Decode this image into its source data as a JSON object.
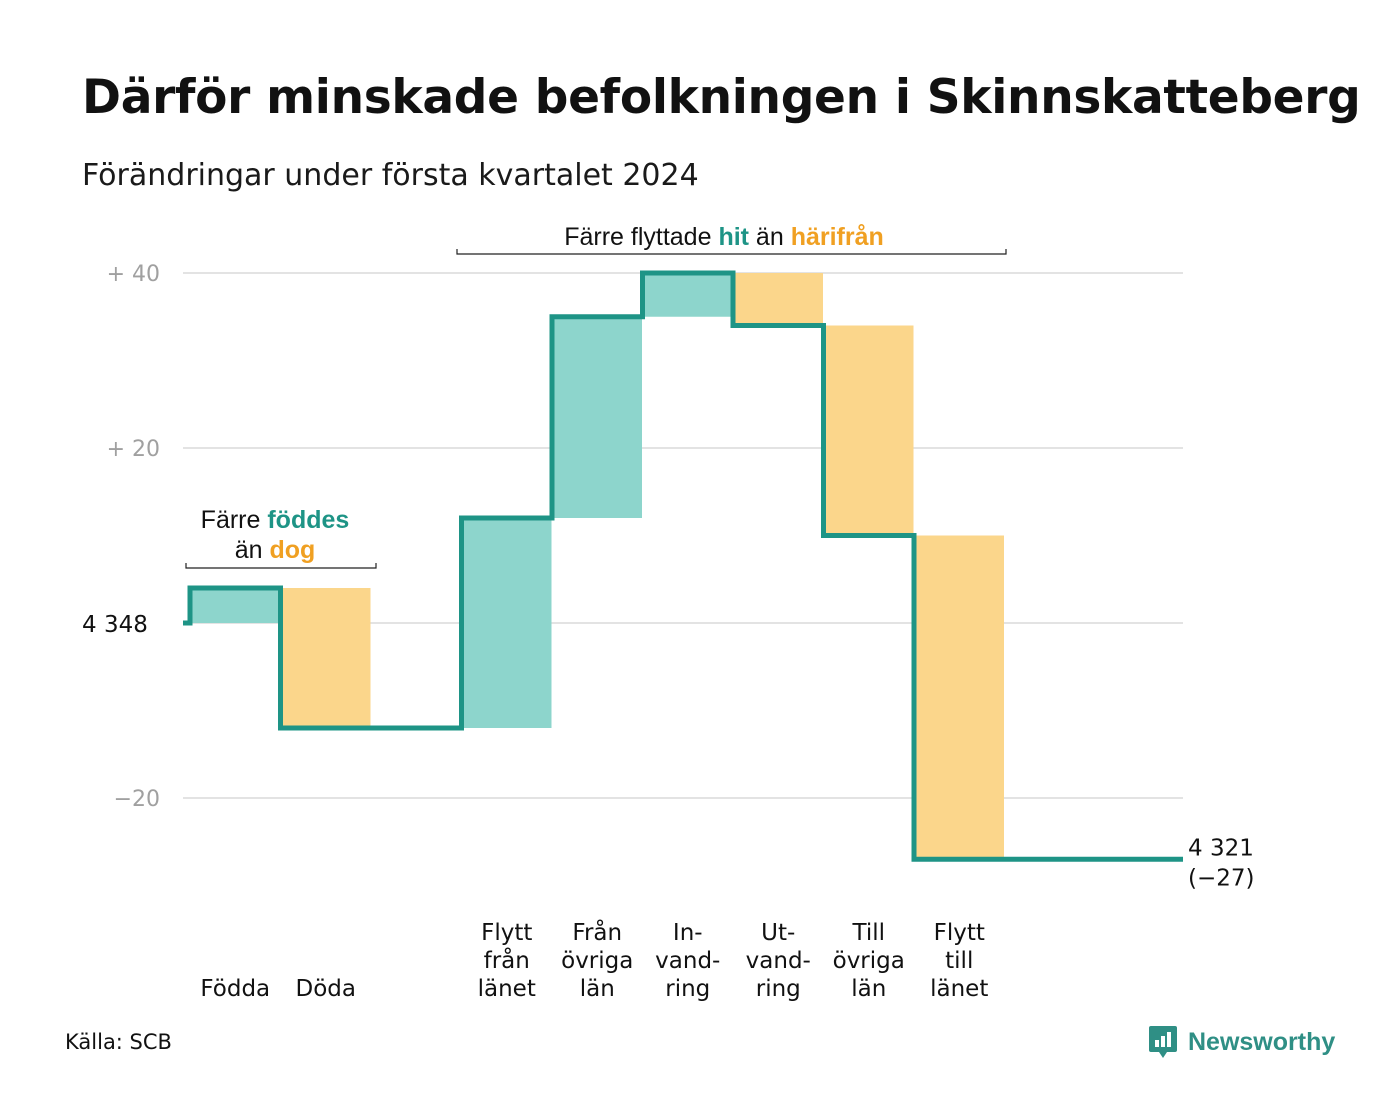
{
  "title": "Därför minskade befolkningen i Skinnskatteberg",
  "subtitle": "Förändringar under första kvartalet 2024",
  "source": "Källa: SCB",
  "brand": "Newsworthy",
  "colors": {
    "line": "#1e9486",
    "positive_fill": "#8dd5cc",
    "negative_fill": "#fbd68b",
    "grid": "#e3e3e3",
    "tick": "#a0a0a0",
    "hit": "#1e9486",
    "harifran": "#f0a022"
  },
  "chart_data": {
    "type": "waterfall",
    "start_value": 4348,
    "start_label": "4  348",
    "end_label_value": "4 321",
    "end_label_change": "(−27)",
    "y_ticks": [
      {
        "value": 40,
        "label": "+  40"
      },
      {
        "value": 20,
        "label": "+  20"
      },
      {
        "value": 0,
        "label": ""
      },
      {
        "value": -20,
        "label": "−20"
      }
    ],
    "ylim": [
      -27,
      40
    ],
    "steps": [
      {
        "label": "Födda",
        "change": 4,
        "kind": "inflow"
      },
      {
        "label": "Döda",
        "change": -16,
        "kind": "outflow"
      },
      {
        "label": "",
        "change": 0,
        "kind": "gap"
      },
      {
        "label": "Flytt\nfrån\nlänet",
        "change": 24,
        "kind": "inflow"
      },
      {
        "label": "Från\növriga\nlän",
        "change": 23,
        "kind": "inflow"
      },
      {
        "label": "In-\nvand-\nring",
        "change": 5,
        "kind": "inflow"
      },
      {
        "label": "Ut-\nvand-\nring",
        "change": -6,
        "kind": "outflow"
      },
      {
        "label": "Till\növriga\nlän",
        "change": -24,
        "kind": "outflow"
      },
      {
        "label": "Flytt\ntill\nlänet",
        "change": -37,
        "kind": "outflow"
      }
    ],
    "annotations": [
      {
        "parts": [
          {
            "text": "Färre ",
            "style": "plain"
          },
          {
            "text": "föddes",
            "style": "hit"
          },
          {
            "text": "än ",
            "style": "plain",
            "newline": true
          },
          {
            "text": "dog",
            "style": "harifran"
          }
        ]
      },
      {
        "parts": [
          {
            "text": "Färre flyttade ",
            "style": "plain"
          },
          {
            "text": "hit",
            "style": "hit"
          },
          {
            "text": "  än ",
            "style": "plain"
          },
          {
            "text": "härifrån",
            "style": "harifran"
          }
        ]
      }
    ]
  }
}
